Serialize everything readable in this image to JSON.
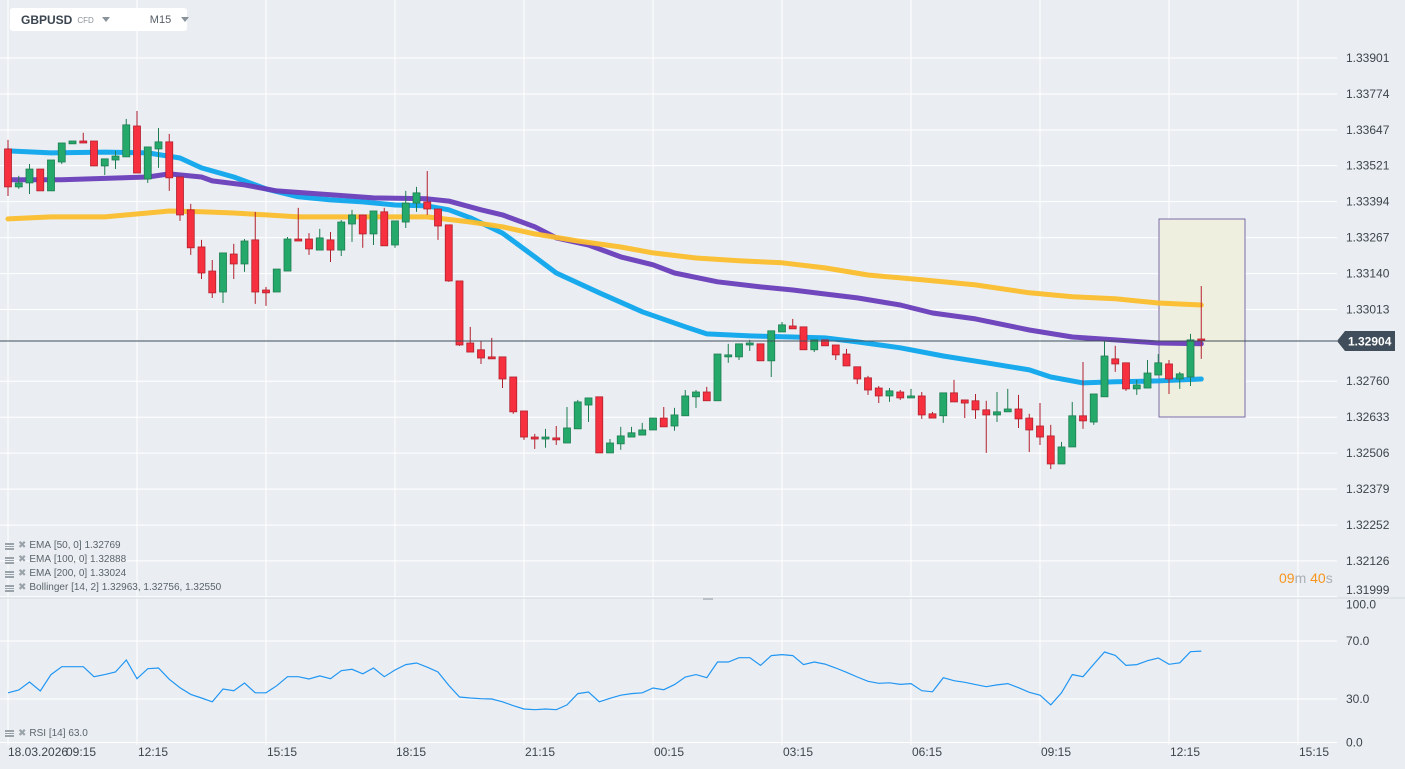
{
  "header": {
    "symbol": "GBPUSD",
    "instrument_type": "CFD",
    "timeframe": "M15"
  },
  "legend": [
    {
      "name": "EMA",
      "params": "[50,  0]",
      "value": "1.32769",
      "color": "#0ea5ec"
    },
    {
      "name": "EMA",
      "params": "[100,  0]",
      "value": "1.32888",
      "color": "#6a3dba"
    },
    {
      "name": "EMA",
      "params": "[200,  0]",
      "value": "1.33024",
      "color": "#fbbd2c"
    },
    {
      "name": "Bollinger",
      "params": " [14, 2]",
      "value": "1.32963,  1.32756,  1.32550",
      "color": ""
    }
  ],
  "rsi_legend": {
    "label": "RSI [14]",
    "value": "63.0",
    "color": "#2196f3"
  },
  "countdown": {
    "minutes": "09",
    "min_unit": "m",
    "seconds": "40",
    "sec_unit": "s"
  },
  "current_price": "1.32904",
  "colors": {
    "up": "#25a96b",
    "down": "#f6303f",
    "background": "#eaeef2",
    "price_tag": "#3f4e5a",
    "countdown": "#f7941d"
  },
  "chart_data": {
    "type": "candlestick",
    "timeframe": "M15",
    "price_axis": {
      "ticks": [
        "1.33901",
        "1.33774",
        "1.33647",
        "1.33521",
        "1.33394",
        "1.33267",
        "1.33140",
        "1.33013",
        "1.32760",
        "1.32633",
        "1.32506",
        "1.32379",
        "1.32252",
        "1.32126",
        "1.31999"
      ],
      "range": [
        1.31999,
        1.33901
      ]
    },
    "time_axis": {
      "date": "18.03.2026",
      "ticks": [
        "09:15",
        "12:15",
        "15:15",
        "18:15",
        "21:15",
        "00:15",
        "03:15",
        "06:15",
        "09:15",
        "12:15",
        "15:15"
      ]
    },
    "candles_ohlc": [
      [
        1.3358,
        1.33612,
        1.33414,
        1.33446
      ],
      [
        1.33446,
        1.33485,
        1.33439,
        1.3346
      ],
      [
        1.3346,
        1.33527,
        1.33421,
        1.33509
      ],
      [
        1.33509,
        1.33509,
        1.33432,
        1.33432
      ],
      [
        1.33432,
        1.33541,
        1.33432,
        1.33541
      ],
      [
        1.33534,
        1.33601,
        1.33527,
        1.33601
      ],
      [
        1.33598,
        1.33608,
        1.33598,
        1.33608
      ],
      [
        1.33608,
        1.33637,
        1.33601,
        1.33601
      ],
      [
        1.33608,
        1.33608,
        1.3352,
        1.3352
      ],
      [
        1.3352,
        1.33545,
        1.33488,
        1.33545
      ],
      [
        1.33541,
        1.33573,
        1.33509,
        1.33555
      ],
      [
        1.33552,
        1.33686,
        1.33552,
        1.33665
      ],
      [
        1.33661,
        1.33714,
        1.33495,
        1.33495
      ],
      [
        1.33474,
        1.33587,
        1.3346,
        1.33587
      ],
      [
        1.3358,
        1.33654,
        1.33513,
        1.33605
      ],
      [
        1.33605,
        1.33633,
        1.33432,
        1.33478
      ],
      [
        1.33481,
        1.33481,
        1.33326,
        1.33347
      ],
      [
        1.33365,
        1.33386,
        1.33206,
        1.33231
      ],
      [
        1.33234,
        1.33259,
        1.33121,
        1.33142
      ],
      [
        1.33149,
        1.33188,
        1.33054,
        1.33072
      ],
      [
        1.33075,
        1.33213,
        1.33036,
        1.33213
      ],
      [
        1.33209,
        1.33245,
        1.33121,
        1.33174
      ],
      [
        1.33174,
        1.33262,
        1.33146,
        1.33255
      ],
      [
        1.33259,
        1.33358,
        1.33033,
        1.33075
      ],
      [
        1.33082,
        1.33093,
        1.33026,
        1.33072
      ],
      [
        1.33075,
        1.33156,
        1.33075,
        1.33156
      ],
      [
        1.33149,
        1.33269,
        1.33149,
        1.33262
      ],
      [
        1.33262,
        1.33372,
        1.33255,
        1.33255
      ],
      [
        1.33262,
        1.33283,
        1.33206,
        1.33227
      ],
      [
        1.33223,
        1.33298,
        1.33223,
        1.33266
      ],
      [
        1.33259,
        1.33287,
        1.33181,
        1.33223
      ],
      [
        1.33223,
        1.33329,
        1.33202,
        1.33322
      ],
      [
        1.33315,
        1.33365,
        1.33252,
        1.33347
      ],
      [
        1.33347,
        1.33347,
        1.33231,
        1.3328
      ],
      [
        1.3328,
        1.33361,
        1.33241,
        1.33361
      ],
      [
        1.33358,
        1.33372,
        1.33238,
        1.33238
      ],
      [
        1.33241,
        1.33326,
        1.33231,
        1.33326
      ],
      [
        1.33322,
        1.33432,
        1.33301,
        1.33389
      ],
      [
        1.33389,
        1.33446,
        1.33358,
        1.33425
      ],
      [
        1.33393,
        1.33502,
        1.33347,
        1.33368
      ],
      [
        1.33368,
        1.33368,
        1.33259,
        1.33308
      ],
      [
        1.33312,
        1.33312,
        1.33111,
        1.33114
      ],
      [
        1.33114,
        1.33114,
        1.32885,
        1.32888
      ],
      [
        1.32895,
        1.32952,
        1.32863,
        1.32863
      ],
      [
        1.32871,
        1.32902,
        1.32821,
        1.32842
      ],
      [
        1.32846,
        1.32913,
        1.32839,
        1.32839
      ],
      [
        1.32846,
        1.32846,
        1.32736,
        1.32768
      ],
      [
        1.32775,
        1.32775,
        1.32645,
        1.32652
      ],
      [
        1.32655,
        1.32655,
        1.32553,
        1.32563
      ],
      [
        1.32563,
        1.32574,
        1.32521,
        1.32556
      ],
      [
        1.32556,
        1.32592,
        1.32525,
        1.32563
      ],
      [
        1.3256,
        1.32602,
        1.32535,
        1.32553
      ],
      [
        1.32542,
        1.32669,
        1.32542,
        1.32595
      ],
      [
        1.32592,
        1.32694,
        1.32592,
        1.32687
      ],
      [
        1.32676,
        1.32701,
        1.32616,
        1.32701
      ],
      [
        1.32705,
        1.32705,
        1.32507,
        1.32507
      ],
      [
        1.32507,
        1.32556,
        1.32507,
        1.32542
      ],
      [
        1.32539,
        1.32599,
        1.32518,
        1.32567
      ],
      [
        1.32563,
        1.32599,
        1.32563,
        1.32578
      ],
      [
        1.3257,
        1.32613,
        1.3257,
        1.32588
      ],
      [
        1.32588,
        1.3263,
        1.32588,
        1.3263
      ],
      [
        1.3263,
        1.32669,
        1.32599,
        1.32599
      ],
      [
        1.32602,
        1.32666,
        1.32585,
        1.32641
      ],
      [
        1.32638,
        1.32729,
        1.32638,
        1.32708
      ],
      [
        1.32705,
        1.32729,
        1.32666,
        1.32722
      ],
      [
        1.32722,
        1.3274,
        1.32691,
        1.32691
      ],
      [
        1.32691,
        1.32856,
        1.32691,
        1.32856
      ],
      [
        1.32846,
        1.32892,
        1.32825,
        1.32853
      ],
      [
        1.32846,
        1.32892,
        1.32835,
        1.32892
      ],
      [
        1.32888,
        1.32906,
        1.32867,
        1.32895
      ],
      [
        1.32892,
        1.32892,
        1.32832,
        1.32832
      ],
      [
        1.32832,
        1.32938,
        1.32775,
        1.32938
      ],
      [
        1.32934,
        1.32969,
        1.32934,
        1.32959
      ],
      [
        1.32955,
        1.3298,
        1.32945,
        1.32945
      ],
      [
        1.32952,
        1.32952,
        1.32871,
        1.32871
      ],
      [
        1.32871,
        1.32906,
        1.32863,
        1.32906
      ],
      [
        1.32906,
        1.32906,
        1.32885,
        1.32885
      ],
      [
        1.32888,
        1.32888,
        1.32835,
        1.32853
      ],
      [
        1.32856,
        1.32874,
        1.32814,
        1.32814
      ],
      [
        1.32811,
        1.32811,
        1.3275,
        1.32768
      ],
      [
        1.32772,
        1.32779,
        1.32712,
        1.32729
      ],
      [
        1.32736,
        1.32743,
        1.32683,
        1.32708
      ],
      [
        1.32708,
        1.32736,
        1.32687,
        1.32726
      ],
      [
        1.32722,
        1.32729,
        1.32694,
        1.32701
      ],
      [
        1.32701,
        1.32733,
        1.32701,
        1.32708
      ],
      [
        1.32708,
        1.32722,
        1.32627,
        1.32641
      ],
      [
        1.32645,
        1.32652,
        1.3263,
        1.3263
      ],
      [
        1.32638,
        1.32719,
        1.32613,
        1.32719
      ],
      [
        1.32719,
        1.32765,
        1.32687,
        1.32687
      ],
      [
        1.32694,
        1.32694,
        1.3263,
        1.32683
      ],
      [
        1.32691,
        1.32715,
        1.32627,
        1.32659
      ],
      [
        1.32659,
        1.32691,
        1.32507,
        1.32641
      ],
      [
        1.32641,
        1.32722,
        1.32616,
        1.32652
      ],
      [
        1.32652,
        1.32733,
        1.32652,
        1.32662
      ],
      [
        1.32662,
        1.32712,
        1.32595,
        1.32627
      ],
      [
        1.3263,
        1.32645,
        1.3251,
        1.32588
      ],
      [
        1.32602,
        1.32683,
        1.32535,
        1.32563
      ],
      [
        1.32567,
        1.32606,
        1.3245,
        1.32468
      ],
      [
        1.32468,
        1.32546,
        1.32468,
        1.32528
      ],
      [
        1.32528,
        1.32687,
        1.32528,
        1.32638
      ],
      [
        1.32638,
        1.32828,
        1.32592,
        1.3262
      ],
      [
        1.32616,
        1.32715,
        1.32606,
        1.32715
      ],
      [
        1.32705,
        1.32902,
        1.32705,
        1.32849
      ],
      [
        1.32839,
        1.32885,
        1.32793,
        1.32821
      ],
      [
        1.32825,
        1.32825,
        1.32726,
        1.32733
      ],
      [
        1.32733,
        1.32765,
        1.32712,
        1.32747
      ],
      [
        1.32736,
        1.32835,
        1.32736,
        1.32789
      ],
      [
        1.32782,
        1.32856,
        1.32782,
        1.32825
      ],
      [
        1.32821,
        1.32835,
        1.32715,
        1.32768
      ],
      [
        1.32768,
        1.32793,
        1.32733,
        1.32786
      ],
      [
        1.32775,
        1.32927,
        1.32743,
        1.32906
      ],
      [
        1.32909,
        1.33096,
        1.32839,
        1.32904
      ]
    ],
    "indicators": [
      {
        "name": "EMA 50",
        "color": "#0ea5ec",
        "points_candle_value": [
          [
            1,
            1.33573
          ],
          [
            5,
            1.33566
          ],
          [
            10,
            1.33569
          ],
          [
            14,
            1.33566
          ],
          [
            17,
            1.33548
          ],
          [
            19,
            1.33513
          ],
          [
            22,
            1.33481
          ],
          [
            25,
            1.33439
          ],
          [
            28,
            1.33411
          ],
          [
            31,
            1.334
          ],
          [
            34,
            1.33393
          ],
          [
            37,
            1.33382
          ],
          [
            40,
            1.33379
          ],
          [
            42,
            1.33365
          ],
          [
            44,
            1.33337
          ],
          [
            47,
            1.33283
          ],
          [
            50,
            1.33199
          ],
          [
            52,
            1.33142
          ],
          [
            56,
            1.33072
          ],
          [
            60,
            1.33005
          ],
          [
            64,
            1.32952
          ],
          [
            66,
            1.32927
          ],
          [
            70,
            1.3292
          ],
          [
            74,
            1.32916
          ],
          [
            77,
            1.32913
          ],
          [
            80,
            1.32899
          ],
          [
            84,
            1.32878
          ],
          [
            88,
            1.32849
          ],
          [
            92,
            1.32825
          ],
          [
            96,
            1.328
          ],
          [
            98,
            1.32775
          ],
          [
            101,
            1.32754
          ],
          [
            104,
            1.32758
          ],
          [
            108,
            1.32761
          ],
          [
            112,
            1.32768
          ]
        ]
      },
      {
        "name": "EMA 100",
        "color": "#6a3dba",
        "points_candle_value": [
          [
            1,
            1.33471
          ],
          [
            6,
            1.33471
          ],
          [
            14,
            1.33481
          ],
          [
            16,
            1.33492
          ],
          [
            19,
            1.33481
          ],
          [
            20,
            1.33467
          ],
          [
            23,
            1.33453
          ],
          [
            26,
            1.33432
          ],
          [
            31,
            1.33418
          ],
          [
            35,
            1.33407
          ],
          [
            40,
            1.33404
          ],
          [
            42,
            1.33396
          ],
          [
            45,
            1.33365
          ],
          [
            47,
            1.33347
          ],
          [
            50,
            1.33305
          ],
          [
            52,
            1.33266
          ],
          [
            55,
            1.33241
          ],
          [
            58,
            1.33199
          ],
          [
            61,
            1.33171
          ],
          [
            63,
            1.33142
          ],
          [
            67,
            1.33111
          ],
          [
            71,
            1.33093
          ],
          [
            74,
            1.33082
          ],
          [
            77,
            1.33068
          ],
          [
            80,
            1.33054
          ],
          [
            84,
            1.33029
          ],
          [
            87,
            1.33001
          ],
          [
            91,
            1.3298
          ],
          [
            96,
            1.32941
          ],
          [
            100,
            1.32916
          ],
          [
            104,
            1.32906
          ],
          [
            108,
            1.32895
          ],
          [
            112,
            1.32892
          ]
        ]
      },
      {
        "name": "EMA 200",
        "color": "#fbbd2c",
        "points_candle_value": [
          [
            1,
            1.33333
          ],
          [
            5,
            1.3334
          ],
          [
            10,
            1.3334
          ],
          [
            14,
            1.33354
          ],
          [
            16,
            1.33361
          ],
          [
            19,
            1.33358
          ],
          [
            22,
            1.33354
          ],
          [
            25,
            1.33347
          ],
          [
            28,
            1.3334
          ],
          [
            40,
            1.3334
          ],
          [
            44,
            1.33322
          ],
          [
            47,
            1.33305
          ],
          [
            50,
            1.3328
          ],
          [
            54,
            1.33255
          ],
          [
            58,
            1.33234
          ],
          [
            61,
            1.33213
          ],
          [
            65,
            1.33195
          ],
          [
            69,
            1.33185
          ],
          [
            73,
            1.33178
          ],
          [
            77,
            1.3316
          ],
          [
            81,
            1.33135
          ],
          [
            86,
            1.33118
          ],
          [
            91,
            1.331
          ],
          [
            96,
            1.33072
          ],
          [
            100,
            1.33058
          ],
          [
            104,
            1.33051
          ],
          [
            108,
            1.33036
          ],
          [
            112,
            1.33029
          ]
        ]
      }
    ],
    "rsi": {
      "axis_ticks": [
        "100.0",
        "70.0",
        "30.0",
        "0.0"
      ],
      "range": [
        0,
        100
      ],
      "values": [
        34.3,
        36.2,
        41.7,
        35.5,
        46.8,
        52.3,
        52.3,
        52.3,
        45.4,
        46.8,
        48.6,
        56.9,
        44.0,
        50.9,
        51.4,
        43.6,
        37.8,
        33.2,
        30.7,
        28.1,
        36.9,
        35.7,
        41.0,
        34.3,
        34.3,
        39.2,
        45.4,
        45.4,
        43.8,
        45.9,
        44.0,
        49.5,
        50.5,
        47.4,
        51.4,
        45.4,
        50.0,
        53.7,
        54.8,
        51.9,
        48.6,
        39.4,
        31.4,
        30.7,
        30.2,
        30.0,
        28.1,
        25.4,
        23.1,
        22.6,
        23.1,
        22.6,
        25.9,
        33.7,
        34.8,
        28.1,
        30.5,
        32.6,
        33.7,
        34.3,
        37.6,
        36.4,
        39.9,
        45.2,
        46.8,
        44.7,
        55.5,
        55.5,
        58.5,
        58.5,
        53.2,
        59.9,
        60.6,
        59.9,
        53.7,
        55.5,
        54.1,
        51.4,
        48.4,
        45.2,
        42.2,
        40.8,
        41.2,
        40.1,
        40.6,
        35.7,
        35.0,
        44.7,
        42.6,
        41.5,
        39.9,
        38.5,
        39.7,
        40.6,
        37.8,
        34.6,
        32.6,
        25.9,
        34.3,
        46.8,
        45.4,
        54.1,
        62.4,
        60.1,
        53.2,
        53.7,
        56.4,
        58.3,
        53.9,
        55.0,
        62.6,
        63.0
      ]
    }
  }
}
